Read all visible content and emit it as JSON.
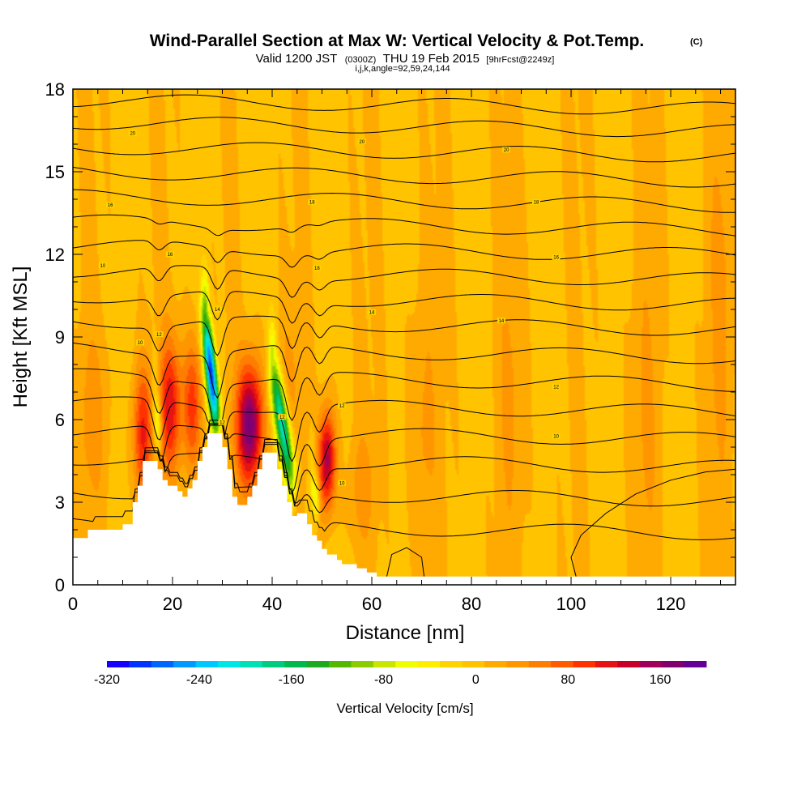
{
  "title": "Wind-Parallel Section at Max W: Vertical Velocity & Pot.Temp.",
  "title_mark": "(C)",
  "subtitle": {
    "valid": "Valid 1200 JST",
    "utc": "(0300Z)",
    "date": "THU 19 Feb 2015",
    "fcst": "[9hrFcst@2249z]"
  },
  "indices": "i,j,k,angle=92,59,24,144",
  "colors": {
    "background_field": "#ffd200",
    "terrain": "#ffffff",
    "contour": "#000000"
  },
  "chart_data": {
    "type": "heatmap",
    "xlabel": "Distance [nm]",
    "ylabel": "Height [Kft MSL]",
    "xlim": [
      0,
      133
    ],
    "ylim": [
      0,
      18
    ],
    "xticks": [
      "0",
      "20",
      "40",
      "60",
      "80",
      "100",
      "120"
    ],
    "yticks": [
      "0",
      "3",
      "6",
      "9",
      "12",
      "15",
      "18"
    ],
    "colorbar": {
      "label": "Vertical Velocity [cm/s]",
      "ticks": [
        "-320",
        "-240",
        "-160",
        "-80",
        "0",
        "80",
        "160"
      ],
      "tick_values": [
        -320,
        -240,
        -160,
        -80,
        0,
        80,
        160
      ],
      "range": [
        -320,
        200
      ],
      "colors": [
        "#1400ff",
        "#0033ff",
        "#0066ff",
        "#0099ff",
        "#00c8ff",
        "#00e6e6",
        "#00e0b4",
        "#00cc80",
        "#00b84d",
        "#1eaa1e",
        "#55b800",
        "#8ccc00",
        "#c8e600",
        "#f0ff00",
        "#ffee00",
        "#ffd200",
        "#ffc300",
        "#ffaa00",
        "#ff9600",
        "#ff7d00",
        "#ff5a00",
        "#ff3200",
        "#e61414",
        "#c80028",
        "#a0005a",
        "#82006e",
        "#640096"
      ]
    },
    "terrain_profile": [
      [
        0,
        1.7
      ],
      [
        3,
        1.7
      ],
      [
        3,
        2.0
      ],
      [
        10,
        2.0
      ],
      [
        10,
        2.2
      ],
      [
        12,
        2.2
      ],
      [
        12,
        3.0
      ],
      [
        13,
        3.0
      ],
      [
        13,
        3.6
      ],
      [
        14,
        3.6
      ],
      [
        14,
        4.5
      ],
      [
        17,
        4.5
      ],
      [
        17,
        4.2
      ],
      [
        18,
        4.2
      ],
      [
        18,
        3.8
      ],
      [
        19,
        3.8
      ],
      [
        19,
        3.6
      ],
      [
        21,
        3.6
      ],
      [
        21,
        3.4
      ],
      [
        22,
        3.4
      ],
      [
        22,
        3.2
      ],
      [
        23,
        3.2
      ],
      [
        23,
        3.5
      ],
      [
        24,
        3.5
      ],
      [
        24,
        3.8
      ],
      [
        25,
        3.8
      ],
      [
        25,
        4.5
      ],
      [
        26,
        4.5
      ],
      [
        26,
        5.0
      ],
      [
        27,
        5.0
      ],
      [
        27,
        5.5
      ],
      [
        30,
        5.5
      ],
      [
        30,
        5.0
      ],
      [
        31,
        5.0
      ],
      [
        31,
        4.2
      ],
      [
        32,
        4.2
      ],
      [
        32,
        3.2
      ],
      [
        33,
        3.2
      ],
      [
        33,
        2.9
      ],
      [
        35,
        2.9
      ],
      [
        35,
        3.2
      ],
      [
        36,
        3.2
      ],
      [
        36,
        3.6
      ],
      [
        37,
        3.6
      ],
      [
        37,
        4.2
      ],
      [
        38,
        4.2
      ],
      [
        38,
        4.8
      ],
      [
        41,
        4.8
      ],
      [
        41,
        4.2
      ],
      [
        42,
        4.2
      ],
      [
        42,
        3.6
      ],
      [
        43,
        3.6
      ],
      [
        43,
        3.0
      ],
      [
        44,
        3.0
      ],
      [
        44,
        2.5
      ],
      [
        45,
        2.5
      ],
      [
        45,
        2.6
      ],
      [
        47,
        2.6
      ],
      [
        47,
        2.2
      ],
      [
        48,
        2.2
      ],
      [
        48,
        1.8
      ],
      [
        49,
        1.8
      ],
      [
        49,
        1.6
      ],
      [
        50,
        1.6
      ],
      [
        50,
        1.3
      ],
      [
        51,
        1.3
      ],
      [
        51,
        1.1
      ],
      [
        53,
        1.1
      ],
      [
        53,
        0.9
      ],
      [
        54,
        0.9
      ],
      [
        54,
        0.75
      ],
      [
        57,
        0.75
      ],
      [
        57,
        0.6
      ],
      [
        59,
        0.6
      ],
      [
        59,
        0.45
      ],
      [
        61,
        0.45
      ],
      [
        61,
        0.3
      ],
      [
        133,
        0.3
      ]
    ],
    "updrafts": [
      {
        "x": 14,
        "y": 5.5,
        "peak": 100,
        "width": 2.0,
        "height": 2.4
      },
      {
        "x": 19.5,
        "y": 6.5,
        "peak": 110,
        "width": 2.2,
        "height": 2.4
      },
      {
        "x": 24,
        "y": 6.5,
        "peak": 90,
        "width": 2.0,
        "height": 2.4
      },
      {
        "x": 35.5,
        "y": 5.8,
        "peak": 180,
        "width": 2.6,
        "height": 2.2
      },
      {
        "x": 51,
        "y": 4.5,
        "peak": 150,
        "width": 1.7,
        "height": 1.8
      },
      {
        "x": 4,
        "y": 6.0,
        "peak": 30,
        "width": 3.0,
        "height": 3.0
      },
      {
        "x": 43,
        "y": 7.0,
        "peak": 25,
        "width": 3.0,
        "height": 3.0
      },
      {
        "x": 58,
        "y": 3.5,
        "peak": 30,
        "width": 2.5,
        "height": 2.0
      },
      {
        "x": 70,
        "y": 5.5,
        "peak": 25,
        "width": 3.0,
        "height": 5.0
      },
      {
        "x": 88,
        "y": 7.0,
        "peak": 20,
        "width": 3.0,
        "height": 6.0
      },
      {
        "x": 115,
        "y": 6.0,
        "peak": 20,
        "width": 3.0,
        "height": 6.0
      },
      {
        "x": 130,
        "y": 10.0,
        "peak": 25,
        "width": 2.5,
        "height": 7.0
      }
    ],
    "downdrafts": [
      {
        "x0": 26.5,
        "y0": 9.5,
        "x1": 29.5,
        "y1": 5.0,
        "peak": -300,
        "width": 0.9
      },
      {
        "x0": 40,
        "y0": 7.8,
        "x1": 45,
        "y1": 2.8,
        "peak": -220,
        "width": 0.9
      },
      {
        "x0": 16.5,
        "y0": 7.0,
        "x1": 17.5,
        "y1": 4.5,
        "peak": -90,
        "width": 0.8
      },
      {
        "x0": 48,
        "y0": 4.0,
        "x1": 49.5,
        "y1": 2.2,
        "peak": -80,
        "width": 0.6
      }
    ],
    "theta_contours": {
      "units": "deg C",
      "labels": [
        {
          "text": "10",
          "x": 6,
          "y": 11.6
        },
        {
          "text": "10",
          "x": 13.5,
          "y": 8.8
        },
        {
          "text": "12",
          "x": 17.3,
          "y": 9.1
        },
        {
          "text": "16",
          "x": 7.5,
          "y": 13.8
        },
        {
          "text": "16",
          "x": 19.5,
          "y": 12.0
        },
        {
          "text": "18",
          "x": 49,
          "y": 11.5
        },
        {
          "text": "20",
          "x": 12,
          "y": 16.4
        },
        {
          "text": "20",
          "x": 58,
          "y": 16.1
        },
        {
          "text": "20",
          "x": 87,
          "y": 15.8
        },
        {
          "text": "18",
          "x": 48,
          "y": 13.9
        },
        {
          "text": "18",
          "x": 93,
          "y": 13.9
        },
        {
          "text": "16",
          "x": 97,
          "y": 11.9
        },
        {
          "text": "14",
          "x": 29,
          "y": 10.0
        },
        {
          "text": "14",
          "x": 60,
          "y": 9.9
        },
        {
          "text": "14",
          "x": 86,
          "y": 9.6
        },
        {
          "text": "12",
          "x": 30,
          "y": 5.9
        },
        {
          "text": "12",
          "x": 42,
          "y": 6.1
        },
        {
          "text": "12",
          "x": 54,
          "y": 6.5
        },
        {
          "text": "12",
          "x": 97,
          "y": 7.2
        },
        {
          "text": "10",
          "x": 54,
          "y": 3.7
        },
        {
          "text": "10",
          "x": 97,
          "y": 5.4
        }
      ]
    }
  }
}
